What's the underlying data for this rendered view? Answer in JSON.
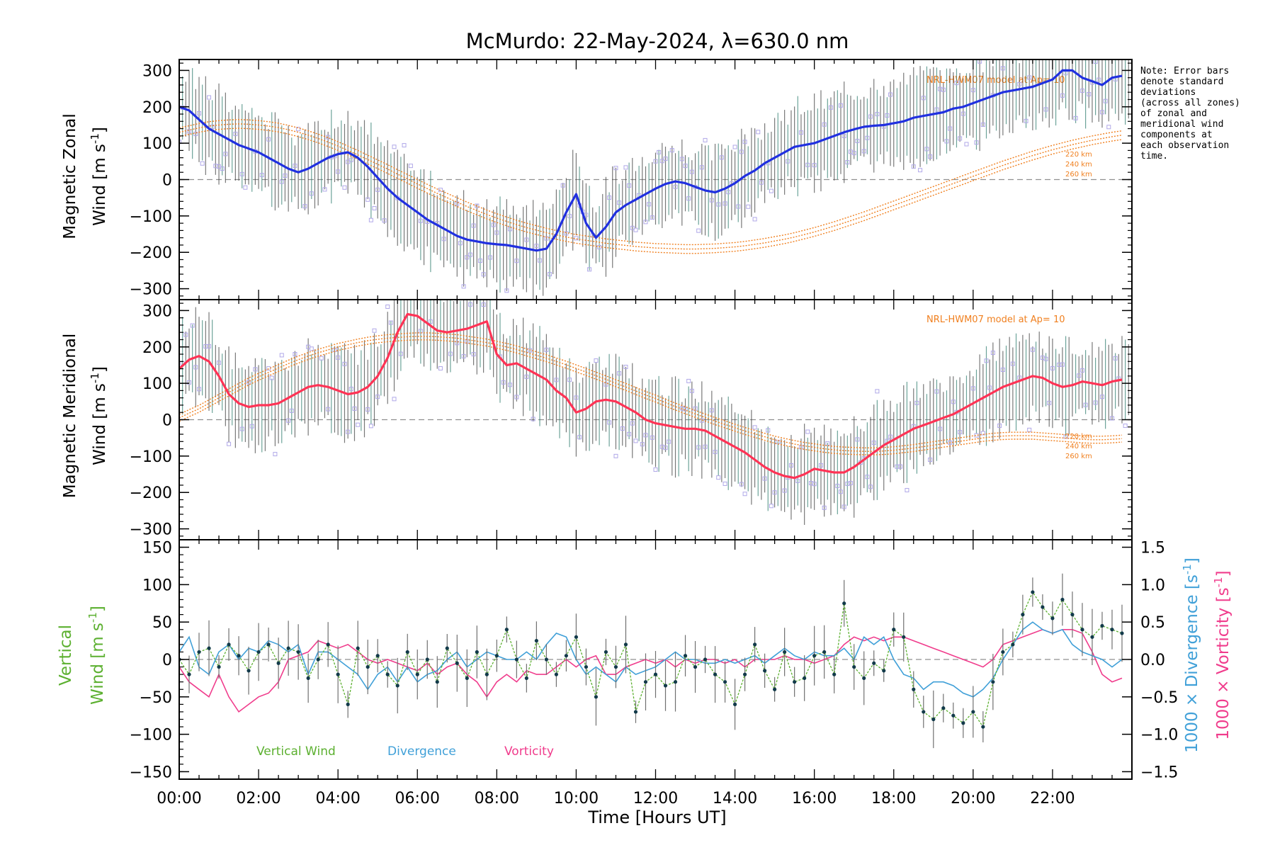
{
  "title": "McMurdo: 22-May-2024, λ=630.0 nm",
  "note": [
    "Note: Error bars",
    "denote standard",
    "deviations",
    "(across all zones)",
    "of zonal and",
    "meridional wind",
    "components at",
    "each observation",
    "time."
  ],
  "xlabel": "Time [Hours UT]",
  "colors": {
    "zonal": "#2030e0",
    "meridional": "#ff3355",
    "model": "#f08020",
    "vertical": "#5cb030",
    "divergence": "#40a0d8",
    "vorticity": "#f03c8c",
    "zero": "#909090",
    "errorbar": "#404040",
    "points": "#b0a8e8"
  },
  "chart_data": [
    {
      "type": "line",
      "ylabel_line1": "Magnetic Zonal",
      "ylabel_line2": "Wind [m s",
      "ylabel_sup": "-1",
      "ylabel_end": "]",
      "ylim": [
        -330,
        330
      ],
      "yticks": [
        "300",
        "200",
        "100",
        "0",
        "−100",
        "−200",
        "−300"
      ],
      "yticks_values": [
        300,
        200,
        100,
        0,
        -100,
        -200,
        -300
      ],
      "model_label": "NRL-HWM07 model at Ap= 10",
      "model_heights": [
        "220 km",
        "240 km",
        "260 km"
      ],
      "x": [
        0,
        0.25,
        0.5,
        0.75,
        1,
        1.25,
        1.5,
        1.75,
        2,
        2.25,
        2.5,
        2.75,
        3,
        3.25,
        3.5,
        3.75,
        4,
        4.25,
        4.5,
        4.75,
        5,
        5.25,
        5.5,
        5.75,
        6,
        6.25,
        6.5,
        6.75,
        7,
        7.25,
        7.5,
        7.75,
        8,
        8.25,
        8.5,
        8.75,
        9,
        9.25,
        9.5,
        9.75,
        10,
        10.25,
        10.5,
        10.75,
        11,
        11.25,
        11.5,
        11.75,
        12,
        12.25,
        12.5,
        12.75,
        13,
        13.25,
        13.5,
        13.75,
        14,
        14.25,
        14.5,
        14.75,
        15,
        15.25,
        15.5,
        15.75,
        16,
        16.25,
        16.5,
        16.75,
        17,
        17.25,
        17.5,
        17.75,
        18,
        18.25,
        18.5,
        18.75,
        19,
        19.25,
        19.5,
        19.75,
        20,
        20.25,
        20.5,
        20.75,
        21,
        21.25,
        21.5,
        21.75,
        22,
        22.25,
        22.5,
        22.75,
        23,
        23.25,
        23.5,
        23.75
      ],
      "series": [
        {
          "values": [
            200,
            190,
            165,
            140,
            125,
            110,
            95,
            85,
            75,
            60,
            45,
            30,
            20,
            30,
            45,
            60,
            70,
            75,
            60,
            35,
            5,
            -25,
            -50,
            -70,
            -90,
            -110,
            -125,
            -140,
            -155,
            -165,
            -170,
            -175,
            -178,
            -180,
            -185,
            -190,
            -195,
            -190,
            -150,
            -90,
            -40,
            -120,
            -160,
            -130,
            -90,
            -70,
            -55,
            -40,
            -25,
            -12,
            -5,
            -10,
            -20,
            -30,
            -35,
            -25,
            -10,
            10,
            25,
            45,
            60,
            75,
            90,
            95,
            100,
            110,
            120,
            130,
            138,
            145,
            148,
            150,
            155,
            160,
            170,
            175,
            180,
            185,
            195,
            200,
            210,
            220,
            230,
            240,
            245,
            250,
            255,
            265,
            275,
            300,
            300,
            280,
            270,
            260,
            280,
            285
          ]
        },
        {
          "name": "NRL-HWM07",
          "values": [
            130,
            136,
            142,
            147,
            150,
            152,
            153,
            152,
            150,
            147,
            143,
            137,
            130,
            122,
            113,
            103,
            92,
            80,
            68,
            55,
            42,
            29,
            15,
            2,
            -12,
            -25,
            -38,
            -50,
            -62,
            -74,
            -85,
            -96,
            -106,
            -115,
            -124,
            -132,
            -139,
            -146,
            -152,
            -158,
            -163,
            -167,
            -171,
            -175,
            -178,
            -181,
            -184,
            -186,
            -188,
            -189,
            -190,
            -191,
            -191,
            -190,
            -189,
            -187,
            -185,
            -182,
            -178,
            -174,
            -169,
            -164,
            -158,
            -151,
            -144,
            -136,
            -128,
            -119,
            -110,
            -101,
            -91,
            -81,
            -71,
            -61,
            -51,
            -41,
            -31,
            -21,
            -11,
            -1,
            9,
            19,
            29,
            39,
            48,
            57,
            66,
            74,
            82,
            89,
            96,
            102,
            108,
            113,
            118,
            122
          ]
        }
      ]
    },
    {
      "type": "line",
      "ylabel_line1": "Magnetic Meridional",
      "ylabel_line2": "Wind [m s",
      "ylabel_sup": "-1",
      "ylabel_end": "]",
      "ylim": [
        -330,
        330
      ],
      "yticks": [
        "300",
        "200",
        "100",
        "0",
        "−100",
        "−200",
        "−300"
      ],
      "yticks_values": [
        300,
        200,
        100,
        0,
        -100,
        -200,
        -300
      ],
      "model_label": "NRL-HWM07 model at Ap= 10",
      "model_heights": [
        "220 km",
        "240 km",
        "260 km"
      ],
      "x": [
        0,
        0.25,
        0.5,
        0.75,
        1,
        1.25,
        1.5,
        1.75,
        2,
        2.25,
        2.5,
        2.75,
        3,
        3.25,
        3.5,
        3.75,
        4,
        4.25,
        4.5,
        4.75,
        5,
        5.25,
        5.5,
        5.75,
        6,
        6.25,
        6.5,
        6.75,
        7,
        7.25,
        7.5,
        7.75,
        8,
        8.25,
        8.5,
        8.75,
        9,
        9.25,
        9.5,
        9.75,
        10,
        10.25,
        10.5,
        10.75,
        11,
        11.25,
        11.5,
        11.75,
        12,
        12.25,
        12.5,
        12.75,
        13,
        13.25,
        13.5,
        13.75,
        14,
        14.25,
        14.5,
        14.75,
        15,
        15.25,
        15.5,
        15.75,
        16,
        16.25,
        16.5,
        16.75,
        17,
        17.25,
        17.5,
        17.75,
        18,
        18.25,
        18.5,
        18.75,
        19,
        19.25,
        19.5,
        19.75,
        20,
        20.25,
        20.5,
        20.75,
        21,
        21.25,
        21.5,
        21.75,
        22,
        22.25,
        22.5,
        22.75,
        23,
        23.25,
        23.5,
        23.75
      ],
      "series": [
        {
          "values": [
            140,
            165,
            175,
            160,
            120,
            70,
            45,
            35,
            40,
            40,
            45,
            60,
            75,
            90,
            95,
            90,
            80,
            70,
            75,
            90,
            120,
            170,
            240,
            290,
            285,
            265,
            245,
            240,
            245,
            250,
            260,
            270,
            180,
            150,
            155,
            140,
            125,
            110,
            80,
            60,
            20,
            30,
            50,
            55,
            50,
            35,
            20,
            0,
            -10,
            -15,
            -20,
            -25,
            -25,
            -30,
            -45,
            -60,
            -75,
            -90,
            -110,
            -130,
            -145,
            -155,
            -160,
            -150,
            -135,
            -140,
            -145,
            -145,
            -130,
            -110,
            -90,
            -70,
            -55,
            -40,
            -25,
            -15,
            -5,
            5,
            15,
            30,
            45,
            60,
            75,
            90,
            100,
            110,
            120,
            115,
            100,
            90,
            95,
            105,
            100,
            95,
            105,
            110
          ]
        },
        {
          "name": "NRL-HWM07",
          "values": [
            5,
            18,
            30,
            45,
            60,
            75,
            90,
            105,
            118,
            130,
            142,
            154,
            165,
            175,
            184,
            192,
            200,
            206,
            212,
            217,
            221,
            224,
            226,
            228,
            229,
            229,
            228,
            226,
            224,
            220,
            216,
            212,
            206,
            200,
            193,
            185,
            177,
            169,
            160,
            151,
            141,
            131,
            121,
            111,
            100,
            90,
            79,
            68,
            58,
            47,
            36,
            26,
            16,
            6,
            -4,
            -13,
            -22,
            -31,
            -39,
            -47,
            -55,
            -61,
            -67,
            -72,
            -76,
            -80,
            -83,
            -85,
            -86,
            -87,
            -87,
            -86,
            -84,
            -81,
            -78,
            -74,
            -70,
            -66,
            -62,
            -58,
            -54,
            -50,
            -47,
            -45,
            -44,
            -44,
            -44,
            -46,
            -48,
            -50,
            -52,
            -54,
            -55,
            -55,
            -54,
            -52
          ]
        }
      ]
    },
    {
      "type": "line",
      "ylabel_line1": "Vertical",
      "ylabel_line2": "Wind [m s",
      "ylabel_sup": "-1",
      "ylabel_end": "]",
      "ylim": [
        -160,
        160
      ],
      "yticks": [
        "150",
        "100",
        "50",
        "0",
        "−50",
        "−100",
        "−150"
      ],
      "yticks_values": [
        150,
        100,
        50,
        0,
        -50,
        -100,
        -150
      ],
      "y2label_div": "1000 × Divergence [s",
      "y2label_vort": "1000 × Vorticity [s",
      "y2label_sup": "-1",
      "y2label_end": "]",
      "y2lim": [
        -1.6,
        1.6
      ],
      "y2ticks": [
        "1.5",
        "1.0",
        "0.5",
        "0.0",
        "−0.5",
        "−1.0",
        "−1.5"
      ],
      "y2ticks_values": [
        1.5,
        1.0,
        0.5,
        0.0,
        -0.5,
        -1.0,
        -1.5
      ],
      "legend": [
        "Vertical Wind",
        "Divergence",
        "Vorticity"
      ],
      "x": [
        0,
        0.25,
        0.5,
        0.75,
        1,
        1.25,
        1.5,
        1.75,
        2,
        2.25,
        2.5,
        2.75,
        3,
        3.25,
        3.5,
        3.75,
        4,
        4.25,
        4.5,
        4.75,
        5,
        5.25,
        5.5,
        5.75,
        6,
        6.25,
        6.5,
        6.75,
        7,
        7.25,
        7.5,
        7.75,
        8,
        8.25,
        8.5,
        8.75,
        9,
        9.25,
        9.5,
        9.75,
        10,
        10.25,
        10.5,
        10.75,
        11,
        11.25,
        11.5,
        11.75,
        12,
        12.25,
        12.5,
        12.75,
        13,
        13.25,
        13.5,
        13.75,
        14,
        14.25,
        14.5,
        14.75,
        15,
        15.25,
        15.5,
        15.75,
        16,
        16.25,
        16.5,
        16.75,
        17,
        17.25,
        17.5,
        17.75,
        18,
        18.25,
        18.5,
        18.75,
        19,
        19.25,
        19.5,
        19.75,
        20,
        20.25,
        20.5,
        20.75,
        21,
        21.25,
        21.5,
        21.75,
        22,
        22.25,
        22.5,
        22.75,
        23,
        23.25,
        23.5,
        23.75
      ],
      "series": [
        {
          "name": "Vertical Wind",
          "values": [
            0,
            -20,
            10,
            15,
            -10,
            20,
            5,
            -15,
            10,
            20,
            -5,
            15,
            10,
            -25,
            0,
            20,
            -20,
            -60,
            15,
            -10,
            5,
            -20,
            -35,
            10,
            -20,
            0,
            -30,
            15,
            -5,
            -25,
            10,
            -20,
            5,
            40,
            0,
            -25,
            25,
            0,
            -20,
            5,
            30,
            -10,
            -50,
            10,
            -10,
            20,
            -70,
            -30,
            -20,
            -35,
            -30,
            5,
            -10,
            0,
            -20,
            -30,
            -60,
            -20,
            20,
            -15,
            -40,
            10,
            -30,
            -25,
            5,
            10,
            -20,
            75,
            -10,
            -25,
            -5,
            -15,
            40,
            30,
            -40,
            -70,
            -80,
            -65,
            -75,
            -85,
            -70,
            -90,
            -30,
            10,
            20,
            60,
            90,
            70,
            55,
            80,
            60,
            40,
            30,
            45,
            40,
            35
          ]
        },
        {
          "name": "Divergence",
          "values": [
            0.1,
            0.3,
            -0.1,
            -0.2,
            0.1,
            0.2,
            0.0,
            0.15,
            0.1,
            0.25,
            0.2,
            0.1,
            0.2,
            -0.2,
            0.1,
            0.1,
            0.0,
            -0.1,
            -0.2,
            -0.4,
            -0.2,
            -0.1,
            -0.3,
            -0.1,
            -0.3,
            -0.2,
            -0.15,
            0.0,
            0.1,
            -0.1,
            0.0,
            0.1,
            0.05,
            0.0,
            0.0,
            0.1,
            0.0,
            0.2,
            0.35,
            0.3,
            0.0,
            -0.2,
            -0.1,
            -0.2,
            -0.3,
            -0.1,
            -0.2,
            -0.15,
            -0.1,
            0.0,
            0.1,
            0.0,
            0.0,
            -0.05,
            -0.05,
            0.0,
            -0.05,
            0.0,
            0.05,
            -0.05,
            0.05,
            0.15,
            0.05,
            0.0,
            0.1,
            0.05,
            0.05,
            0.15,
            0.0,
            0.3,
            0.2,
            0.3,
            0.0,
            -0.2,
            -0.25,
            -0.4,
            -0.3,
            -0.3,
            -0.35,
            -0.45,
            -0.5,
            -0.4,
            -0.25,
            0.0,
            0.2,
            0.4,
            0.5,
            0.4,
            0.35,
            0.4,
            0.2,
            0.1,
            0.05,
            0.0,
            -0.1,
            0.0
          ]
        },
        {
          "name": "Vorticity",
          "values": [
            -0.1,
            -0.3,
            -0.4,
            -0.5,
            -0.2,
            -0.5,
            -0.7,
            -0.6,
            -0.5,
            -0.45,
            -0.3,
            0.0,
            0.05,
            0.1,
            0.25,
            0.2,
            0.15,
            0.2,
            0.1,
            0.0,
            -0.05,
            0.0,
            -0.05,
            -0.1,
            -0.15,
            -0.05,
            -0.2,
            -0.1,
            -0.05,
            -0.2,
            -0.3,
            -0.5,
            -0.3,
            -0.2,
            -0.3,
            -0.15,
            -0.2,
            -0.2,
            -0.1,
            0.0,
            -0.1,
            0.0,
            0.05,
            -0.2,
            -0.2,
            -0.1,
            -0.05,
            0.0,
            -0.05,
            0.0,
            -0.1,
            0.0,
            -0.05,
            0.0,
            0.0,
            -0.05,
            0.0,
            -0.1,
            0.0,
            0.0,
            0.0,
            0.05,
            0.0,
            0.0,
            -0.05,
            0.0,
            0.05,
            0.2,
            0.3,
            0.25,
            0.3,
            0.25,
            0.3,
            0.3,
            0.25,
            0.2,
            0.15,
            0.1,
            0.05,
            0.0,
            -0.05,
            -0.1,
            0.0,
            0.2,
            0.25,
            0.3,
            0.35,
            0.4,
            0.35,
            0.4,
            0.4,
            0.35,
            0.1,
            -0.2,
            -0.3,
            -0.25
          ]
        }
      ]
    }
  ],
  "xticks": [
    "00:00",
    "02:00",
    "04:00",
    "06:00",
    "08:00",
    "10:00",
    "12:00",
    "14:00",
    "16:00",
    "18:00",
    "20:00",
    "22:00"
  ],
  "xticks_values": [
    0,
    2,
    4,
    6,
    8,
    10,
    12,
    14,
    16,
    18,
    20,
    22
  ],
  "xlim": [
    0,
    24
  ]
}
